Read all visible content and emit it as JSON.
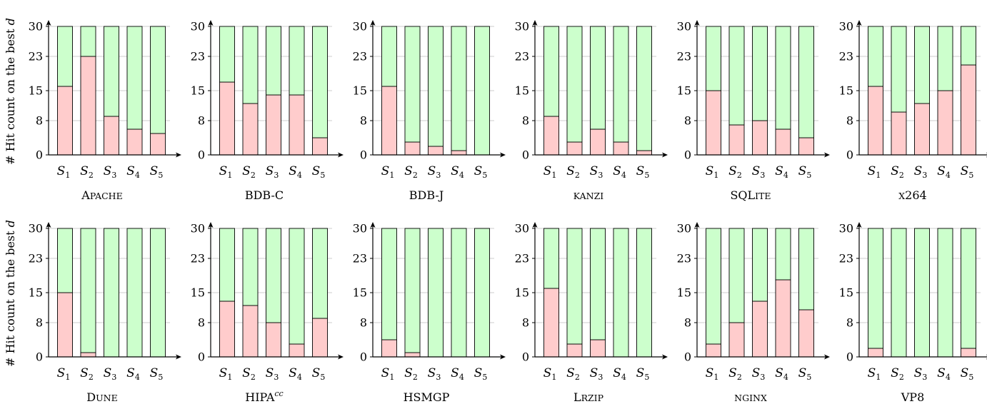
{
  "figure": {
    "ylabel_prefix": "# Hit count on the best ",
    "ylabel_var": "d"
  },
  "colors": {
    "hit": "#ffcccc",
    "rest": "#ccffcc",
    "stroke": "#000000",
    "grid": "#bbbbbb"
  },
  "chart_data": [
    {
      "type": "bar",
      "stacked": true,
      "title": "Apache",
      "title_style": "small-caps",
      "categories": [
        "S1",
        "S2",
        "S3",
        "S4",
        "S5"
      ],
      "yticks": [
        0,
        8,
        15,
        23,
        30
      ],
      "ylim": [
        0,
        30
      ],
      "grid": true,
      "series": [
        {
          "values": [
            16,
            23,
            9,
            6,
            5
          ]
        },
        {
          "values": [
            14,
            7,
            21,
            24,
            25
          ]
        }
      ]
    },
    {
      "type": "bar",
      "stacked": true,
      "title": "BDB-C",
      "categories": [
        "S1",
        "S2",
        "S3",
        "S4",
        "S5"
      ],
      "yticks": [
        0,
        8,
        15,
        23,
        30
      ],
      "ylim": [
        0,
        30
      ],
      "grid": true,
      "series": [
        {
          "values": [
            17,
            12,
            14,
            14,
            4
          ]
        },
        {
          "values": [
            13,
            18,
            16,
            16,
            26
          ]
        }
      ]
    },
    {
      "type": "bar",
      "stacked": true,
      "title": "BDB-J",
      "categories": [
        "S1",
        "S2",
        "S3",
        "S4",
        "S5"
      ],
      "yticks": [
        0,
        8,
        15,
        23,
        30
      ],
      "ylim": [
        0,
        30
      ],
      "grid": true,
      "series": [
        {
          "values": [
            16,
            3,
            2,
            1,
            0
          ]
        },
        {
          "values": [
            14,
            27,
            28,
            29,
            30
          ]
        }
      ]
    },
    {
      "type": "bar",
      "stacked": true,
      "title": "kanzi",
      "title_style": "small-caps",
      "categories": [
        "S1",
        "S2",
        "S3",
        "S4",
        "S5"
      ],
      "yticks": [
        0,
        8,
        15,
        23,
        30
      ],
      "ylim": [
        0,
        30
      ],
      "grid": true,
      "series": [
        {
          "values": [
            9,
            3,
            6,
            3,
            1
          ]
        },
        {
          "values": [
            21,
            27,
            24,
            27,
            29
          ]
        }
      ]
    },
    {
      "type": "bar",
      "stacked": true,
      "title": "SQLite",
      "title_style": "small-caps",
      "categories": [
        "S1",
        "S2",
        "S3",
        "S4",
        "S5"
      ],
      "yticks": [
        0,
        8,
        15,
        23,
        30
      ],
      "ylim": [
        0,
        30
      ],
      "grid": true,
      "series": [
        {
          "values": [
            15,
            7,
            8,
            6,
            4
          ]
        },
        {
          "values": [
            15,
            23,
            22,
            24,
            26
          ]
        }
      ]
    },
    {
      "type": "bar",
      "stacked": true,
      "title": "x264",
      "title_style": "small-caps",
      "categories": [
        "S1",
        "S2",
        "S3",
        "S4",
        "S5"
      ],
      "yticks": [
        0,
        8,
        15,
        23,
        30
      ],
      "ylim": [
        0,
        30
      ],
      "grid": true,
      "series": [
        {
          "values": [
            16,
            10,
            12,
            15,
            21
          ]
        },
        {
          "values": [
            14,
            20,
            18,
            15,
            9
          ]
        }
      ]
    },
    {
      "type": "bar",
      "stacked": true,
      "title": "Dune",
      "title_style": "small-caps",
      "categories": [
        "S1",
        "S2",
        "S3",
        "S4",
        "S5"
      ],
      "yticks": [
        0,
        8,
        15,
        23,
        30
      ],
      "ylim": [
        0,
        30
      ],
      "grid": true,
      "series": [
        {
          "values": [
            15,
            1,
            0,
            0,
            0
          ]
        },
        {
          "values": [
            15,
            29,
            30,
            30,
            30
          ]
        }
      ]
    },
    {
      "type": "bar",
      "stacked": true,
      "title": "HIPA",
      "title_sup": "cc",
      "categories": [
        "S1",
        "S2",
        "S3",
        "S4",
        "S5"
      ],
      "yticks": [
        0,
        8,
        15,
        23,
        30
      ],
      "ylim": [
        0,
        30
      ],
      "grid": true,
      "series": [
        {
          "values": [
            13,
            12,
            8,
            3,
            9
          ]
        },
        {
          "values": [
            17,
            18,
            22,
            27,
            21
          ]
        }
      ]
    },
    {
      "type": "bar",
      "stacked": true,
      "title": "HSMGP",
      "categories": [
        "S1",
        "S2",
        "S3",
        "S4",
        "S5"
      ],
      "yticks": [
        0,
        8,
        15,
        23,
        30
      ],
      "ylim": [
        0,
        30
      ],
      "grid": true,
      "series": [
        {
          "values": [
            4,
            1,
            0,
            0,
            0
          ]
        },
        {
          "values": [
            26,
            29,
            30,
            30,
            30
          ]
        }
      ]
    },
    {
      "type": "bar",
      "stacked": true,
      "title": "Lrzip",
      "title_style": "small-caps",
      "categories": [
        "S1",
        "S2",
        "S3",
        "S4",
        "S5"
      ],
      "yticks": [
        0,
        8,
        15,
        23,
        30
      ],
      "ylim": [
        0,
        30
      ],
      "grid": true,
      "series": [
        {
          "values": [
            16,
            3,
            4,
            0,
            0
          ]
        },
        {
          "values": [
            14,
            27,
            26,
            30,
            30
          ]
        }
      ]
    },
    {
      "type": "bar",
      "stacked": true,
      "title": "nginx",
      "title_style": "small-caps",
      "categories": [
        "S1",
        "S2",
        "S3",
        "S4",
        "S5"
      ],
      "yticks": [
        0,
        8,
        15,
        23,
        30
      ],
      "ylim": [
        0,
        30
      ],
      "grid": true,
      "series": [
        {
          "values": [
            3,
            8,
            13,
            18,
            11
          ]
        },
        {
          "values": [
            27,
            22,
            17,
            12,
            19
          ]
        }
      ]
    },
    {
      "type": "bar",
      "stacked": true,
      "title": "VP8",
      "categories": [
        "S1",
        "S2",
        "S3",
        "S4",
        "S5"
      ],
      "yticks": [
        0,
        8,
        15,
        23,
        30
      ],
      "ylim": [
        0,
        30
      ],
      "grid": true,
      "series": [
        {
          "values": [
            2,
            0,
            0,
            0,
            2
          ]
        },
        {
          "values": [
            28,
            30,
            30,
            30,
            28
          ]
        }
      ]
    }
  ]
}
